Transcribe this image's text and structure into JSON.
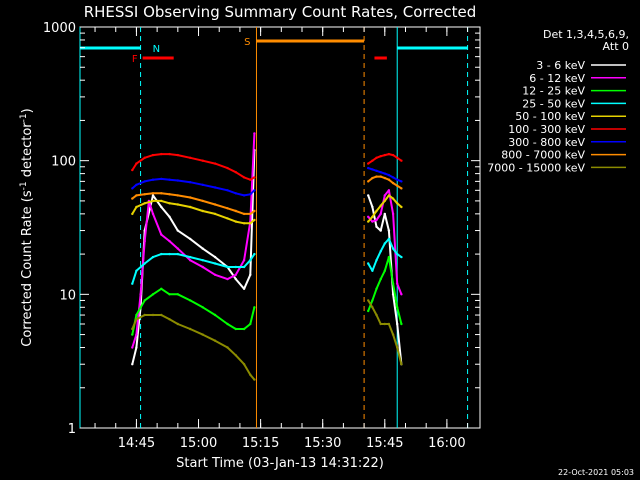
{
  "chart_data": {
    "type": "line",
    "title": "RHESSI Observing Summary Count Rates, Corrected",
    "xlabel": "Start Time (03-Jan-13 14:31:22)",
    "ylabel": "Corrected Count Rate (s",
    "ylabel_sup": "-1",
    "ylabel_mid": " detector",
    "ylabel_tail": ")",
    "timestamp": "22-Oct-2021 05:03",
    "yscale": "log",
    "ylim": [
      1,
      1000
    ],
    "xlim": [
      "14:31:22",
      "16:08:00"
    ],
    "x_ticks": [
      "14:45",
      "15:00",
      "15:15",
      "15:30",
      "15:45",
      "16:00"
    ],
    "y_ticks": [
      "1",
      "10",
      "100",
      "1000"
    ],
    "legend": {
      "placement": "top-right",
      "header": [
        "Det 1,3,4,5,6,9,",
        "Att 0"
      ],
      "entries": [
        {
          "label": "3 - 6 keV",
          "color": "#ffffff"
        },
        {
          "label": "6 - 12 keV",
          "color": "#ff00ff"
        },
        {
          "label": "12 - 25 keV",
          "color": "#00ff00"
        },
        {
          "label": "25 - 50 keV",
          "color": "#00ffff"
        },
        {
          "label": "50 - 100 keV",
          "color": "#e6d200"
        },
        {
          "label": "100 - 300 keV",
          "color": "#ff0000"
        },
        {
          "label": "300 - 800 keV",
          "color": "#0000ff"
        },
        {
          "label": "800 - 7000 keV",
          "color": "#ff8c00"
        },
        {
          "label": "7000 - 15000 keV",
          "color": "#8b8b00"
        }
      ]
    },
    "flags": {
      "night_label": "N",
      "flare_label": "F",
      "saa_label": "S",
      "night_color": "#00ffff",
      "flare_color": "#ff0000",
      "saa_color": "#ff8c00",
      "night_bars": [
        [
          "14:31:22",
          "14:46:00"
        ],
        [
          "15:48:00",
          "16:05:00"
        ]
      ],
      "flare_bars": [
        [
          "14:46:30",
          "14:54:00"
        ],
        [
          "15:42:30",
          "15:45:30"
        ]
      ],
      "saa_bars": [
        [
          "15:14:00",
          "15:40:00"
        ]
      ],
      "night_lines_solid": [
        "14:31:22",
        "15:48:00"
      ],
      "night_lines_dashed": [
        "14:46:00",
        "16:05:00"
      ],
      "saa_lines_solid": [
        "15:14:00"
      ],
      "saa_lines_dashed": [
        "15:40:00"
      ]
    },
    "series": [
      {
        "name": "3 - 6 keV",
        "color": "#ffffff",
        "x": [
          "14:44:00",
          "14:45:00",
          "14:46:00",
          "14:47:00",
          "14:49:00",
          "14:51:00",
          "14:53:00",
          "14:55:00",
          "14:58:00",
          "15:01:00",
          "15:04:00",
          "15:07:00",
          "15:09:00",
          "15:11:00",
          "15:12:30",
          "15:13:30",
          "15:41:00",
          "15:42:00",
          "15:43:00",
          "15:44:00",
          "15:45:00",
          "15:46:00",
          "15:47:00",
          "15:48:00",
          "15:49:00"
        ],
        "y": [
          3,
          4,
          8,
          30,
          55,
          45,
          38,
          30,
          26,
          22,
          19,
          16,
          13,
          11,
          14,
          120,
          55,
          45,
          32,
          30,
          40,
          30,
          10,
          6,
          3
        ]
      },
      {
        "name": "6 - 12 keV",
        "color": "#ff00ff",
        "x": [
          "14:44:00",
          "14:45:00",
          "14:46:00",
          "14:47:00",
          "14:48:00",
          "14:49:00",
          "14:51:00",
          "14:53:00",
          "14:55:00",
          "14:58:00",
          "15:01:00",
          "15:04:00",
          "15:07:00",
          "15:09:00",
          "15:11:00",
          "15:12:30",
          "15:13:30",
          "15:41:00",
          "15:42:00",
          "15:43:00",
          "15:44:00",
          "15:45:00",
          "15:46:00",
          "15:47:00",
          "15:48:00",
          "15:49:00"
        ],
        "y": [
          4,
          5,
          10,
          25,
          50,
          40,
          28,
          25,
          22,
          18,
          16,
          14,
          13,
          14,
          18,
          35,
          160,
          38,
          35,
          36,
          40,
          55,
          60,
          40,
          12,
          10
        ]
      },
      {
        "name": "12 - 25 keV",
        "color": "#00ff00",
        "x": [
          "14:44:00",
          "14:45:00",
          "14:47:00",
          "14:49:00",
          "14:51:00",
          "14:53:00",
          "14:55:00",
          "14:58:00",
          "15:01:00",
          "15:04:00",
          "15:07:00",
          "15:09:00",
          "15:11:00",
          "15:12:30",
          "15:13:30",
          "15:41:00",
          "15:42:00",
          "15:43:00",
          "15:44:00",
          "15:45:00",
          "15:46:00",
          "15:47:00",
          "15:48:00",
          "15:49:00"
        ],
        "y": [
          5,
          7,
          9,
          10,
          11,
          10,
          10,
          9,
          8,
          7,
          6,
          5.5,
          5.5,
          6,
          8,
          7.5,
          9,
          11,
          13,
          15,
          19,
          12,
          8,
          6
        ]
      },
      {
        "name": "25 - 50 keV",
        "color": "#00ffff",
        "x": [
          "14:44:00",
          "14:45:00",
          "14:47:00",
          "14:49:00",
          "14:51:00",
          "14:53:00",
          "14:55:00",
          "14:58:00",
          "15:01:00",
          "15:04:00",
          "15:07:00",
          "15:09:00",
          "15:11:00",
          "15:12:30",
          "15:13:30",
          "15:41:00",
          "15:42:00",
          "15:43:00",
          "15:44:00",
          "15:45:00",
          "15:46:00",
          "15:47:00",
          "15:48:00",
          "15:49:00"
        ],
        "y": [
          12,
          15,
          17,
          19,
          20,
          20,
          20,
          19,
          18,
          17,
          16,
          16,
          16,
          18,
          20,
          17,
          15,
          18,
          21,
          24,
          26,
          22,
          20,
          19
        ]
      },
      {
        "name": "50 - 100 keV",
        "color": "#e6d200",
        "x": [
          "14:44:00",
          "14:45:00",
          "14:47:00",
          "14:49:00",
          "14:51:00",
          "14:53:00",
          "14:55:00",
          "14:58:00",
          "15:01:00",
          "15:04:00",
          "15:07:00",
          "15:09:00",
          "15:11:00",
          "15:12:30",
          "15:13:30",
          "15:41:00",
          "15:42:00",
          "15:43:00",
          "15:44:00",
          "15:45:00",
          "15:46:00",
          "15:47:00",
          "15:48:00",
          "15:49:00"
        ],
        "y": [
          40,
          45,
          48,
          50,
          50,
          48,
          47,
          45,
          42,
          40,
          37,
          35,
          34,
          34,
          36,
          35,
          38,
          42,
          46,
          50,
          55,
          52,
          48,
          45
        ]
      },
      {
        "name": "100 - 300 keV",
        "color": "#ff0000",
        "x": [
          "14:44:00",
          "14:45:00",
          "14:47:00",
          "14:49:00",
          "14:51:00",
          "14:53:00",
          "14:55:00",
          "14:58:00",
          "15:01:00",
          "15:04:00",
          "15:07:00",
          "15:09:00",
          "15:11:00",
          "15:12:30",
          "15:13:30",
          "15:41:00",
          "15:42:00",
          "15:43:00",
          "15:44:00",
          "15:45:00",
          "15:46:00",
          "15:47:00",
          "15:48:00",
          "15:49:00"
        ],
        "y": [
          85,
          95,
          105,
          110,
          112,
          112,
          110,
          105,
          100,
          95,
          88,
          82,
          75,
          72,
          75,
          95,
          100,
          105,
          108,
          110,
          112,
          110,
          105,
          100
        ]
      },
      {
        "name": "300 - 800 keV",
        "color": "#0000ff",
        "x": [
          "14:44:00",
          "14:45:00",
          "14:47:00",
          "14:49:00",
          "14:51:00",
          "14:53:00",
          "14:55:00",
          "14:58:00",
          "15:01:00",
          "15:04:00",
          "15:07:00",
          "15:09:00",
          "15:11:00",
          "15:12:30",
          "15:13:30",
          "15:41:00",
          "15:42:00",
          "15:43:00",
          "15:44:00",
          "15:45:00",
          "15:46:00",
          "15:47:00",
          "15:48:00",
          "15:49:00"
        ],
        "y": [
          62,
          66,
          70,
          72,
          73,
          72,
          71,
          69,
          66,
          63,
          60,
          57,
          55,
          56,
          60,
          88,
          86,
          84,
          82,
          80,
          78,
          75,
          72,
          70
        ]
      },
      {
        "name": "800 - 7000 keV",
        "color": "#ff8c00",
        "x": [
          "14:44:00",
          "14:45:00",
          "14:47:00",
          "14:49:00",
          "14:51:00",
          "14:53:00",
          "14:55:00",
          "14:58:00",
          "15:01:00",
          "15:04:00",
          "15:07:00",
          "15:09:00",
          "15:11:00",
          "15:12:30",
          "15:13:30",
          "15:41:00",
          "15:42:00",
          "15:43:00",
          "15:44:00",
          "15:45:00",
          "15:46:00",
          "15:47:00",
          "15:48:00",
          "15:49:00"
        ],
        "y": [
          52,
          55,
          56,
          57,
          57,
          56,
          55,
          53,
          50,
          47,
          44,
          42,
          40,
          40,
          42,
          70,
          74,
          76,
          76,
          74,
          72,
          68,
          65,
          62
        ]
      },
      {
        "name": "7000 - 15000 keV",
        "color": "#8b8b00",
        "x": [
          "14:44:00",
          "14:45:00",
          "14:47:00",
          "14:49:00",
          "14:51:00",
          "14:53:00",
          "14:55:00",
          "14:58:00",
          "15:01:00",
          "15:04:00",
          "15:07:00",
          "15:09:00",
          "15:11:00",
          "15:12:30",
          "15:13:30",
          "15:41:00",
          "15:42:00",
          "15:43:00",
          "15:44:00",
          "15:45:00",
          "15:46:00",
          "15:47:00",
          "15:48:00",
          "15:49:00"
        ],
        "y": [
          5.5,
          6.5,
          7,
          7,
          7,
          6.5,
          6,
          5.5,
          5,
          4.5,
          4,
          3.5,
          3,
          2.5,
          2.3,
          9,
          8,
          7,
          6,
          6,
          6,
          5,
          4,
          3
        ]
      }
    ]
  }
}
